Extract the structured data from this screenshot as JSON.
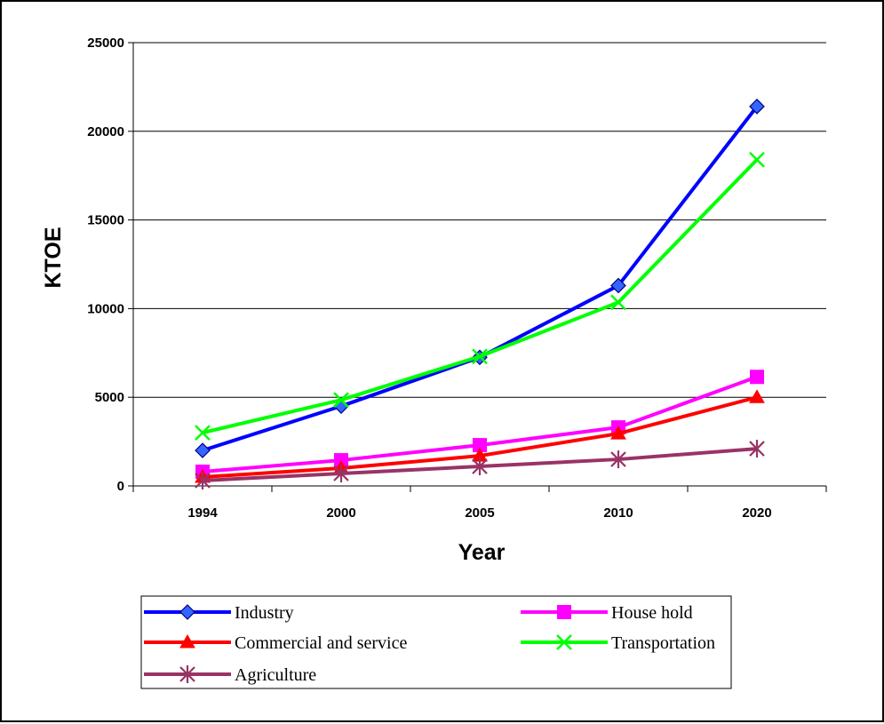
{
  "chart_data": {
    "type": "line",
    "title": "",
    "xlabel": "Year",
    "ylabel": "KTOE",
    "categories": [
      "1994",
      "2000",
      "2005",
      "2010",
      "2020"
    ],
    "ylim": [
      0,
      25000
    ],
    "yticks": [
      "0",
      "5000",
      "10000",
      "15000",
      "20000",
      "25000"
    ],
    "grid": true,
    "legend_position": "bottom",
    "series": [
      {
        "name": "Industry",
        "color": "#0000ff",
        "marker": "diamond",
        "marker_color": "#3366ff",
        "values": [
          2000,
          4500,
          7250,
          11300,
          21400
        ]
      },
      {
        "name": "House hold",
        "color": "#ff00ff",
        "marker": "square",
        "marker_color": "#ff00ff",
        "values": [
          800,
          1450,
          2300,
          3300,
          6150
        ]
      },
      {
        "name": "Commercial and service",
        "color": "#ff0000",
        "marker": "triangle",
        "marker_color": "#ff0000",
        "values": [
          500,
          1000,
          1700,
          2950,
          5000
        ]
      },
      {
        "name": "Transportation",
        "color": "#00ff00",
        "marker": "x",
        "marker_color": "#00ff00",
        "values": [
          3000,
          4850,
          7300,
          10350,
          18400
        ]
      },
      {
        "name": "Agriculture",
        "color": "#993366",
        "marker": "star",
        "marker_color": "#993366",
        "values": [
          300,
          700,
          1100,
          1500,
          2100
        ]
      }
    ]
  }
}
